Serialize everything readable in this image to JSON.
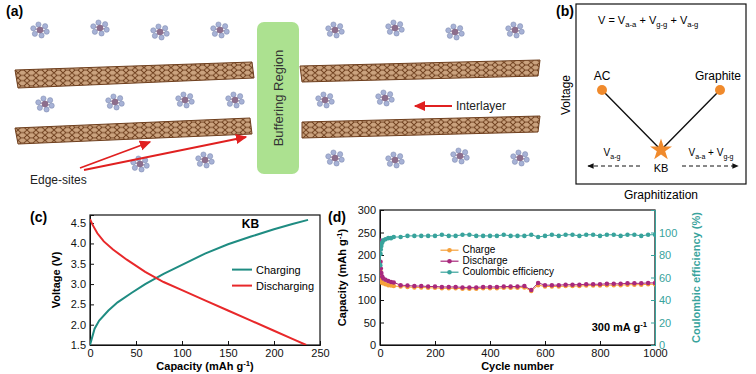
{
  "diagram_a": {
    "panel_label": "(a)",
    "buffering_region": "Buffering Region",
    "interlayer": "Interlayer",
    "edge_sites": "Edge-sites"
  },
  "diagram_b": {
    "panel_label": "(b)",
    "equation": [
      {
        "text": "V = V"
      },
      {
        "sub": "a-a"
      },
      {
        "text": " + V"
      },
      {
        "sub": "g-g"
      },
      {
        "text": " + V"
      },
      {
        "sub": "a-g"
      }
    ],
    "nodes": [
      {
        "label": "AC"
      },
      {
        "label": "Graphite"
      },
      {
        "label": "KB"
      }
    ],
    "arrow_left": [
      {
        "text": "V"
      },
      {
        "sub": "a-g"
      }
    ],
    "arrow_right": [
      {
        "text": "V"
      },
      {
        "sub": "a-a"
      },
      {
        "text": " + V"
      },
      {
        "sub": "g-g"
      }
    ],
    "y_label": "Voltage",
    "x_label": "Graphitization"
  },
  "chart_data": [
    {
      "panel_label": "(c)",
      "type": "line",
      "x_label": [
        {
          "text": "Capacity (mAh g"
        },
        {
          "sup": "-1"
        },
        {
          "text": ")"
        }
      ],
      "y_label": "Voltage (V)",
      "annotation": "KB",
      "xlim": [
        0,
        250
      ],
      "xticks": [
        0,
        50,
        100,
        150,
        200,
        250
      ],
      "ylim": [
        1.5,
        4.7
      ],
      "yticks": [
        1.5,
        {
          "value": 2,
          "label": "2.0"
        },
        2.5,
        {
          "value": 3,
          "label": "3.0"
        },
        3.5,
        {
          "value": 4,
          "label": "4.0"
        },
        4.5
      ],
      "legend": "right",
      "series": [
        {
          "name": "Charging",
          "color": "#1f8c82",
          "line_style": "solid",
          "x": [
            0,
            5,
            10,
            20,
            30,
            45,
            60,
            80,
            100,
            125,
            150,
            175,
            200,
            220,
            237
          ],
          "values": [
            1.5,
            1.9,
            2.1,
            2.35,
            2.55,
            2.78,
            3.0,
            3.25,
            3.47,
            3.75,
            3.98,
            4.17,
            4.35,
            4.48,
            4.58
          ]
        },
        {
          "name": "Discharging",
          "color": "#e8282a",
          "line_style": "solid",
          "x": [
            0,
            3,
            8,
            15,
            25,
            40,
            60,
            80,
            100,
            125,
            150,
            175,
            200,
            220,
            235
          ],
          "values": [
            4.6,
            4.45,
            4.25,
            4.05,
            3.85,
            3.6,
            3.3,
            3.05,
            2.85,
            2.6,
            2.35,
            2.1,
            1.85,
            1.65,
            1.5
          ]
        }
      ]
    },
    {
      "panel_label": "(d)",
      "type": "line",
      "x_label": "Cycle number",
      "y_label": [
        {
          "text": "Capacity (mAh g"
        },
        {
          "sup": "-1"
        },
        {
          "text": ")"
        }
      ],
      "y2_label": "Coulombic efficiency (%)",
      "annotation": [
        {
          "text": "300 mA g"
        },
        {
          "sup": "-1"
        }
      ],
      "xlim": [
        0,
        1000
      ],
      "xticks": [
        0,
        200,
        400,
        600,
        800,
        1000
      ],
      "ylim": [
        0,
        300
      ],
      "yticks": [
        0,
        50,
        100,
        150,
        200,
        250,
        300
      ],
      "y2lim": [
        0,
        120
      ],
      "y2ticks": [
        0,
        20,
        40,
        60,
        80,
        100
      ],
      "legend": "upper center",
      "x": [
        1,
        2,
        3,
        5,
        8,
        12,
        20,
        30,
        40,
        50,
        75,
        100,
        125,
        150,
        175,
        200,
        225,
        250,
        275,
        300,
        325,
        350,
        375,
        400,
        425,
        450,
        475,
        500,
        525,
        550,
        575,
        600,
        625,
        650,
        675,
        700,
        725,
        750,
        775,
        800,
        825,
        850,
        875,
        900,
        925,
        950,
        975,
        1000
      ],
      "series": [
        {
          "name": "Charge",
          "color": "#f5a03a",
          "marker": "circle",
          "values": [
            165,
            150,
            145,
            140,
            138,
            137,
            135,
            133,
            132,
            131,
            130,
            129,
            128,
            128,
            127,
            127,
            126,
            126,
            126,
            125,
            125,
            125,
            126,
            126,
            126,
            127,
            127,
            127,
            128,
            120,
            133,
            130,
            130,
            130,
            131,
            131,
            131,
            132,
            132,
            132,
            133,
            133,
            133,
            134,
            134,
            134,
            135,
            135
          ]
        },
        {
          "name": "Discharge",
          "color": "#a8287c",
          "marker": "circle",
          "values": [
            232,
            185,
            170,
            160,
            152,
            148,
            145,
            142,
            140,
            139,
            133,
            132,
            131,
            131,
            130,
            130,
            129,
            129,
            129,
            128,
            128,
            128,
            129,
            129,
            129,
            130,
            130,
            130,
            131,
            122,
            138,
            133,
            133,
            133,
            134,
            134,
            134,
            135,
            135,
            135,
            136,
            136,
            136,
            137,
            137,
            137,
            138,
            138
          ]
        },
        {
          "name": "Coulombic efficiency",
          "color": "#38a39c",
          "marker": "circle",
          "axis": "y2",
          "values": [
            71,
            81,
            85,
            88,
            91,
            93,
            94,
            95,
            95,
            96,
            96,
            97,
            97,
            97,
            97,
            97,
            98,
            97,
            97,
            98,
            98,
            97,
            97,
            97,
            97,
            98,
            97,
            97,
            97,
            98,
            96,
            97,
            98,
            97,
            98,
            98,
            97,
            98,
            98,
            97,
            98,
            98,
            97,
            98,
            98,
            97,
            98,
            98
          ]
        }
      ]
    }
  ]
}
